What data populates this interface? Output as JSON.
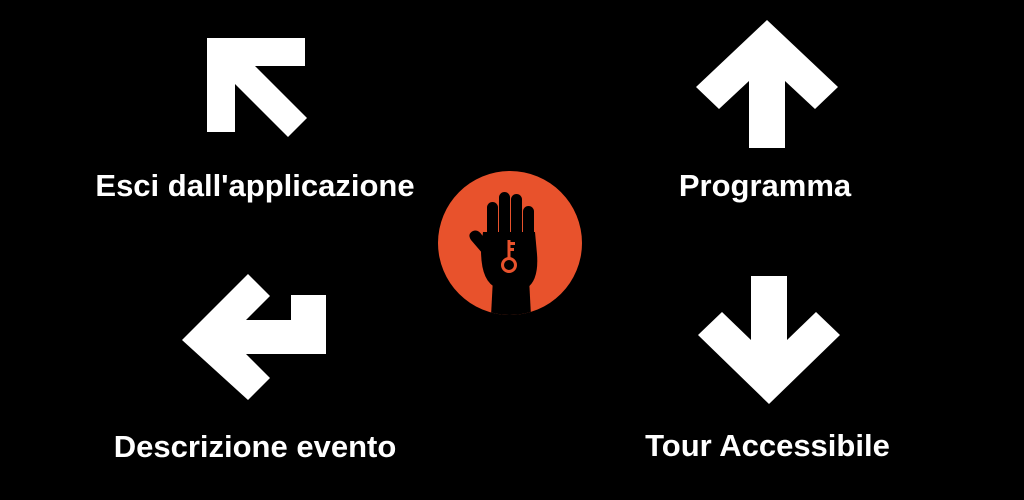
{
  "options": {
    "exit": {
      "label": "Esci dall'applicazione",
      "icon": "arrow-up-left-icon"
    },
    "program": {
      "label": "Programma",
      "icon": "arrow-up-icon"
    },
    "description": {
      "label": "Descrizione evento",
      "icon": "arrow-return-left-icon"
    },
    "tour": {
      "label": "Tour Accessibile",
      "icon": "arrow-down-icon"
    }
  },
  "logo": {
    "icon": "hand-key-logo-icon"
  },
  "colors": {
    "background": "#000000",
    "foreground": "#ffffff",
    "accent": "#e8522c"
  }
}
